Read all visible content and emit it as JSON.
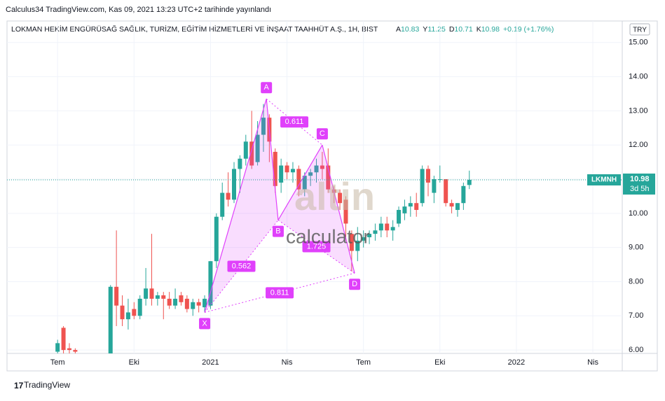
{
  "header": {
    "publisher": "Calculus34 TradingView.com, Kas 09, 2021 13:23 UTC+2 tarihinde yayınlandı",
    "footer": "TradingView"
  },
  "chart_data": {
    "type": "candlestick",
    "title": "LOKMAN HEKİM ENGÜRÜSAĞ SAĞLIK, TURİZM, EĞİTİM HİZMETLERİ VE İNŞAAT TAAHHÜT A.Ş., 1H, BIST",
    "legend_labels": {
      "open": "A",
      "high": "Y",
      "low": "D",
      "close": "K"
    },
    "change": "+0.19 (+1.76%)",
    "currency": "TRY",
    "symbol": "LKMNH",
    "countdown": "3d 5h",
    "watermark": [
      "altin",
      "calculator"
    ],
    "up_color": "#26a69a",
    "down_color": "#ef5350",
    "pattern_color": "#e040fb",
    "x": [
      0,
      1,
      2,
      3,
      9,
      10,
      11,
      12,
      13,
      14,
      15,
      16,
      17,
      18,
      19,
      20,
      21,
      22,
      23,
      24,
      25,
      26,
      27,
      28,
      29,
      30,
      31,
      32,
      33,
      34,
      35,
      36,
      37,
      38,
      39,
      40,
      41,
      42,
      43,
      44,
      45,
      46,
      47,
      48,
      49,
      50,
      51,
      52,
      53,
      54,
      55,
      56,
      57,
      58,
      59,
      60,
      61,
      62,
      63,
      64,
      65,
      66,
      67,
      68,
      69,
      70
    ],
    "open": [
      5.95,
      6.65,
      6.05,
      6.0,
      5.9,
      7.85,
      7.3,
      6.9,
      7.2,
      7.0,
      7.5,
      7.8,
      7.5,
      7.6,
      7.5,
      7.3,
      7.6,
      7.5,
      7.2,
      7.4,
      7.25,
      7.3,
      8.6,
      9.9,
      10.6,
      10.4,
      11.3,
      11.6,
      12.1,
      11.5,
      12.3,
      12.8,
      11.8,
      10.9,
      11.4,
      11.2,
      11.3,
      10.7,
      11.1,
      11.2,
      11.4,
      11.4,
      10.7,
      10.6,
      10.4,
      9.4,
      8.9,
      9.2,
      9.3,
      9.4,
      9.5,
      9.7,
      9.5,
      9.7,
      10.0,
      10.2,
      10.3,
      10.3,
      11.3,
      10.6,
      11.0,
      11.0,
      10.3,
      10.1,
      10.3,
      10.83
    ],
    "high": [
      6.3,
      6.7,
      6.2,
      6.05,
      7.9,
      9.5,
      7.6,
      7.5,
      7.4,
      7.6,
      8.4,
      9.4,
      7.7,
      7.7,
      7.7,
      7.8,
      7.7,
      7.6,
      7.5,
      7.5,
      7.6,
      8.6,
      10.0,
      10.9,
      11.2,
      11.5,
      11.7,
      12.3,
      13.0,
      12.7,
      13.2,
      12.9,
      11.9,
      11.6,
      11.5,
      11.5,
      11.4,
      11.2,
      11.3,
      11.6,
      11.8,
      11.9,
      10.8,
      10.7,
      10.5,
      9.5,
      9.6,
      9.5,
      9.5,
      9.7,
      9.9,
      9.9,
      9.8,
      10.2,
      10.4,
      10.5,
      10.6,
      11.4,
      11.4,
      11.1,
      11.4,
      11.0,
      10.4,
      10.3,
      10.9,
      11.25
    ],
    "low": [
      5.9,
      5.9,
      5.9,
      5.9,
      5.9,
      6.7,
      6.7,
      6.6,
      6.9,
      6.9,
      7.3,
      7.3,
      7.3,
      6.9,
      7.2,
      7.2,
      7.3,
      7.1,
      7.0,
      7.1,
      7.1,
      7.2,
      8.4,
      9.8,
      10.2,
      10.3,
      10.6,
      11.4,
      11.3,
      11.4,
      11.8,
      11.5,
      10.6,
      10.6,
      11.0,
      10.9,
      10.5,
      10.5,
      10.8,
      10.9,
      11.0,
      10.6,
      10.3,
      10.1,
      9.3,
      8.3,
      8.6,
      9.0,
      9.1,
      9.2,
      9.3,
      9.3,
      9.2,
      9.6,
      9.8,
      9.9,
      9.9,
      10.2,
      10.5,
      10.3,
      10.9,
      10.2,
      10.0,
      9.9,
      10.1,
      10.71
    ],
    "close": [
      6.2,
      6.0,
      6.0,
      5.95,
      7.85,
      7.3,
      6.9,
      7.1,
      7.0,
      7.5,
      7.8,
      7.5,
      7.6,
      7.5,
      7.3,
      7.5,
      7.4,
      7.2,
      7.4,
      7.3,
      7.5,
      8.6,
      9.9,
      10.6,
      10.4,
      11.3,
      11.6,
      12.1,
      11.4,
      12.3,
      12.8,
      12.1,
      10.8,
      11.4,
      11.2,
      11.3,
      10.7,
      11.1,
      11.2,
      11.4,
      11.3,
      10.7,
      10.6,
      10.3,
      9.7,
      8.9,
      9.2,
      9.3,
      9.4,
      9.5,
      9.7,
      9.5,
      9.6,
      10.1,
      10.2,
      10.3,
      10.1,
      11.3,
      10.9,
      11.0,
      11.0,
      10.3,
      10.2,
      10.3,
      10.8,
      10.98
    ],
    "xlim": [
      -8.6,
      96
    ],
    "xticks": [
      {
        "value": 0,
        "label": "Tem"
      },
      {
        "value": 13,
        "label": "Eki"
      },
      {
        "value": 26,
        "label": "2021"
      },
      {
        "value": 39,
        "label": "Nis"
      },
      {
        "value": 52,
        "label": "Tem"
      },
      {
        "value": 65,
        "label": "Eki"
      },
      {
        "value": 78,
        "label": "2022"
      },
      {
        "value": 91,
        "label": "Nis"
      }
    ],
    "ylim": [
      5.9,
      15.63
    ],
    "yticks": [
      {
        "value": 6,
        "label": "6.00"
      },
      {
        "value": 7,
        "label": "7.00"
      },
      {
        "value": 8,
        "label": "8.00"
      },
      {
        "value": 9,
        "label": "9.00"
      },
      {
        "value": 10,
        "label": "10.00"
      },
      {
        "value": 11,
        "label": "11.00"
      },
      {
        "value": 12,
        "label": "12.00"
      },
      {
        "value": 13,
        "label": "13.00"
      },
      {
        "value": 14,
        "label": "14.00"
      },
      {
        "value": 15,
        "label": "15.00"
      }
    ],
    "pattern": {
      "points": [
        {
          "label": "X",
          "x": 25,
          "y": 7.1
        },
        {
          "label": "A",
          "x": 35.5,
          "y": 13.35
        },
        {
          "label": "B",
          "x": 37.5,
          "y": 9.8
        },
        {
          "label": "C",
          "x": 45,
          "y": 12.0
        },
        {
          "label": "D",
          "x": 50.5,
          "y": 8.25
        }
      ],
      "ratios": [
        {
          "from": 0,
          "to": 2,
          "value": 0.562
        },
        {
          "from": 1,
          "to": 3,
          "value": 0.611
        },
        {
          "from": 2,
          "to": 4,
          "value": 1.725
        },
        {
          "from": 0,
          "to": 4,
          "value": 0.811
        }
      ]
    }
  }
}
